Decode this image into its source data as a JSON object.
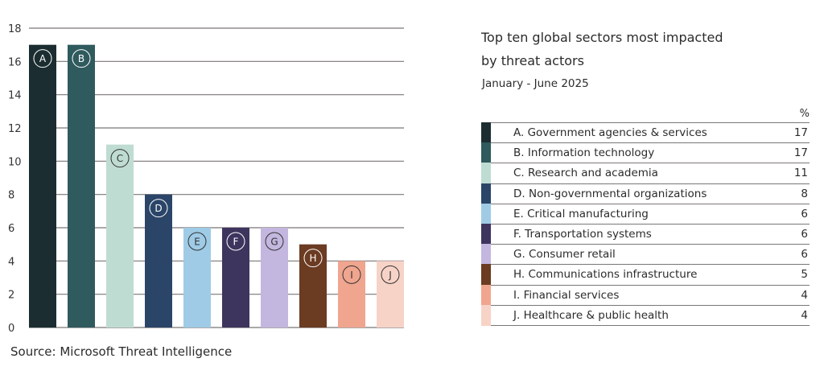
{
  "chart_data": {
    "type": "bar",
    "title": "Top ten global sectors most impacted by threat actors",
    "subtitle": "January - June 2025",
    "source": "Source: Microsoft Threat Intelligence",
    "xlabel": "",
    "ylabel": "",
    "ylim": [
      0,
      18
    ],
    "yticks": [
      0,
      2,
      4,
      6,
      8,
      10,
      12,
      14,
      16,
      18
    ],
    "grid": true,
    "legend_placement": "right",
    "value_header": "%",
    "categories": [
      "A",
      "B",
      "C",
      "D",
      "E",
      "F",
      "G",
      "H",
      "I",
      "J"
    ],
    "labels": [
      "Government agencies & services",
      "Information technology",
      "Research and academia",
      "Non-governmental organizations",
      "Critical manufacturing",
      "Transportation systems",
      "Consumer retail",
      "Communications infrastructure",
      "Financial services",
      "Healthcare & public health"
    ],
    "values": [
      17,
      17,
      11,
      8,
      6,
      6,
      6,
      5,
      4,
      4
    ],
    "colors": [
      "#1b2d30",
      "#2f5a5e",
      "#bfdcd3",
      "#2b4569",
      "#9fcbe6",
      "#3e355e",
      "#c3b7df",
      "#6b3b22",
      "#f0a58f",
      "#f7d3c7"
    ],
    "letter_colors": [
      "#ffffff",
      "#ffffff",
      "#333333",
      "#ffffff",
      "#333333",
      "#ffffff",
      "#333333",
      "#ffffff",
      "#333333",
      "#333333"
    ]
  },
  "header": {
    "title_line1": "Top ten global sectors most impacted",
    "title_line2": "by threat actors",
    "subtitle": "January - June 2025",
    "pct": "%"
  },
  "footer": {
    "source": "Source: Microsoft Threat Intelligence"
  }
}
